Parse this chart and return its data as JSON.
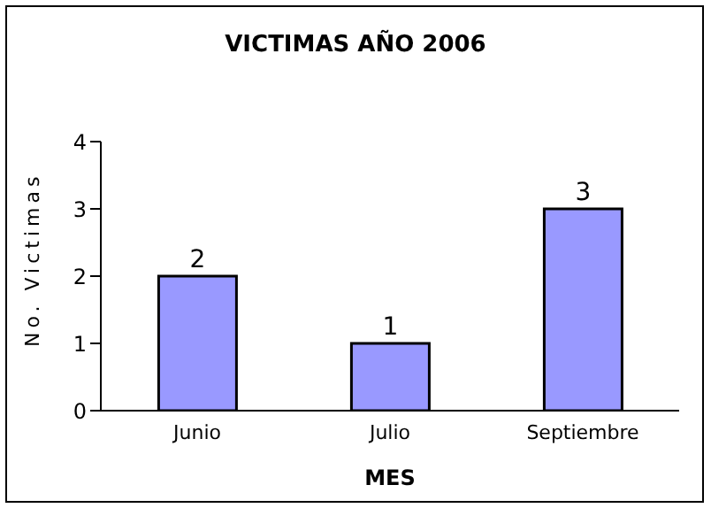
{
  "chart_data": {
    "type": "bar",
    "title": "VICTIMAS AÑO 2006",
    "xlabel": "MES",
    "ylabel": "No. Victimas",
    "categories": [
      "Junio",
      "Julio",
      "Septiembre"
    ],
    "values": [
      2,
      1,
      3
    ],
    "color": "#9999ff",
    "ylim": [
      0,
      4
    ],
    "yticks": [
      0,
      1,
      2,
      3,
      4
    ],
    "data_labels": true,
    "grid": false,
    "legend": false
  }
}
